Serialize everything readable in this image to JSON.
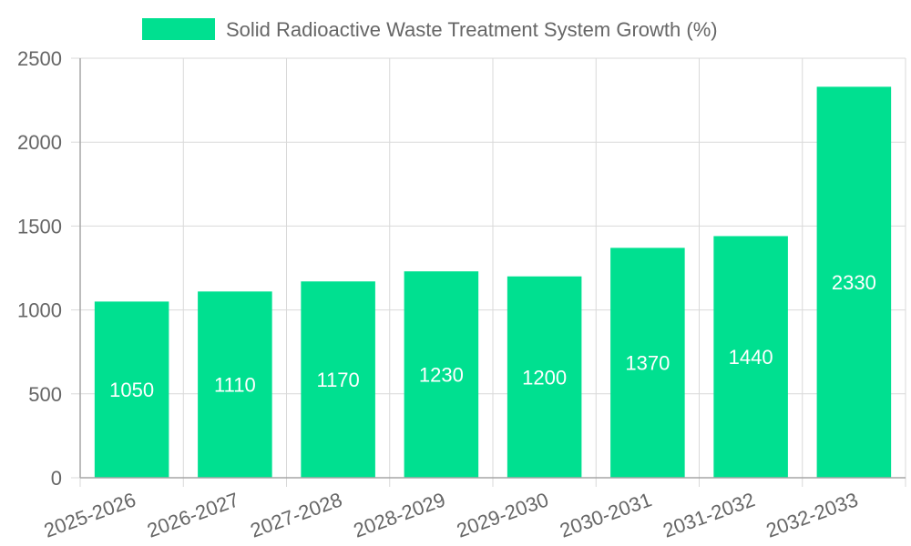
{
  "chart_data": {
    "type": "bar",
    "categories": [
      "2025-2026",
      "2026-2027",
      "2027-2028",
      "2028-2029",
      "2029-2030",
      "2030-2031",
      "2031-2032",
      "2032-2033"
    ],
    "series": [
      {
        "name": "Solid Radioactive Waste Treatment System Growth (%)",
        "values": [
          1050,
          1110,
          1170,
          1230,
          1200,
          1370,
          1440,
          2330
        ]
      }
    ],
    "title": "",
    "xlabel": "",
    "ylabel": "",
    "ylim": [
      0,
      2500
    ],
    "yticks": [
      0,
      500,
      1000,
      1500,
      2000,
      2500
    ],
    "grid": true,
    "legend_position": "top",
    "bar_color": "#00e090"
  }
}
